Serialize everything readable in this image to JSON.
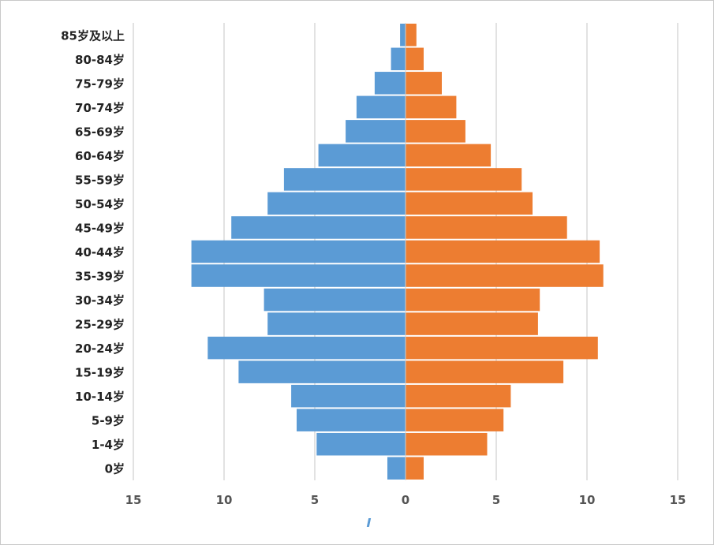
{
  "chart_data": {
    "type": "bar",
    "orientation": "horizontal",
    "layout": "population-pyramid",
    "title": "",
    "xlabel": "",
    "ylabel": "",
    "categories": [
      "0岁",
      "1-4岁",
      "5-9岁",
      "10-14岁",
      "15-19岁",
      "20-24岁",
      "25-29岁",
      "30-34岁",
      "35-39岁",
      "40-44岁",
      "45-49岁",
      "50-54岁",
      "55-59岁",
      "60-64岁",
      "65-69岁",
      "70-74岁",
      "75-79岁",
      "80-84岁",
      "85岁及以上"
    ],
    "series": [
      {
        "side": "left",
        "color": "#5b9bd5",
        "values": [
          1.0,
          4.9,
          6.0,
          6.3,
          9.2,
          10.9,
          7.6,
          7.8,
          11.8,
          11.8,
          9.6,
          7.6,
          6.7,
          4.8,
          3.3,
          2.7,
          1.7,
          0.8,
          0.3
        ]
      },
      {
        "side": "right",
        "color": "#ed7d31",
        "values": [
          1.0,
          4.5,
          5.4,
          5.8,
          8.7,
          10.6,
          7.3,
          7.4,
          10.9,
          10.7,
          8.9,
          7.0,
          6.4,
          4.7,
          3.3,
          2.8,
          2.0,
          1.0,
          0.6
        ]
      }
    ],
    "xlim": [
      -15,
      15
    ],
    "xticks": [
      -15,
      -10,
      -5,
      0,
      5,
      10,
      15
    ],
    "xtick_labels": [
      "15",
      "10",
      "5",
      "0",
      "5",
      "10",
      "15"
    ],
    "grid": true,
    "legend": "bottom"
  }
}
